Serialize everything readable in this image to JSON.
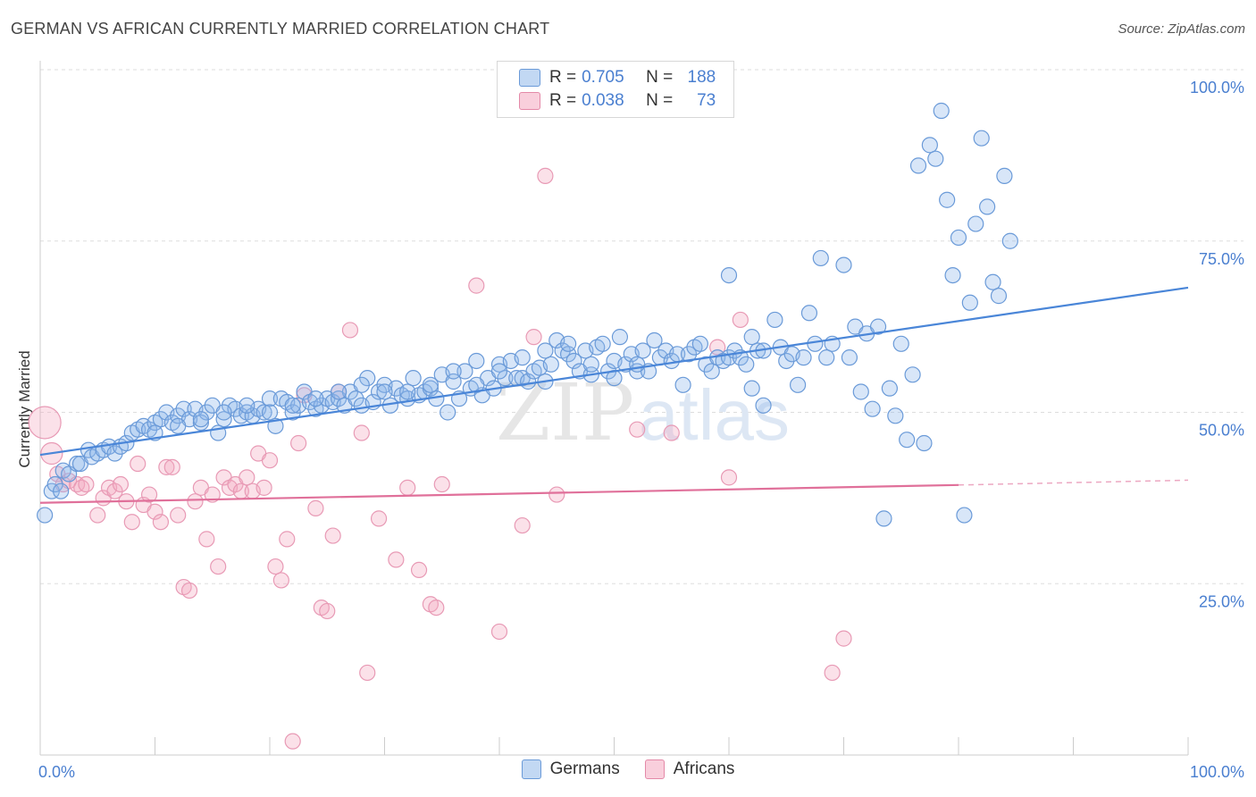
{
  "title": "GERMAN VS AFRICAN CURRENTLY MARRIED CORRELATION CHART",
  "source": "Source: ZipAtlas.com",
  "watermark": {
    "zip": "ZIP",
    "atlas": "atlas"
  },
  "legend": {
    "rows": [
      {
        "r_label": "R =",
        "r_value": "0.705",
        "n_label": "N =",
        "n_value": "188",
        "color": "#8fb8ea"
      },
      {
        "r_label": "R =",
        "r_value": "0.038",
        "n_label": "N =",
        "n_value": "73",
        "color": "#f4a8c0"
      }
    ]
  },
  "bottom_legend": [
    {
      "label": "Germans",
      "color": "#8fb8ea"
    },
    {
      "label": "Africans",
      "color": "#f4a8c0"
    }
  ],
  "colors": {
    "blue": "#4a86d8",
    "blue_fill": "rgba(143,184,234,0.35)",
    "pink": "#e0709a",
    "pink_fill": "rgba(244,168,192,0.35)",
    "axis_text": "#4a7fd0"
  },
  "chart_data": {
    "type": "scatter",
    "title": "GERMAN VS AFRICAN CURRENTLY MARRIED CORRELATION CHART",
    "ylabel": "Currently Married",
    "xlabel": "",
    "xlim": [
      0,
      100
    ],
    "ylim": [
      0,
      100
    ],
    "x_tick_labels": [
      "0.0%",
      "100.0%"
    ],
    "y_tick_labels": [
      {
        "value": 100,
        "label": "100.0%"
      },
      {
        "value": 75,
        "label": "75.0%"
      },
      {
        "value": 50,
        "label": "50.0%"
      },
      {
        "value": 25,
        "label": "25.0%"
      }
    ],
    "grid": true,
    "series": [
      {
        "name": "Germans",
        "trend": {
          "x1": 0,
          "y1": 43.8,
          "x2": 100,
          "y2": 68.2
        },
        "points": [
          [
            0.4,
            35
          ],
          [
            1,
            38.5
          ],
          [
            1.3,
            39.5
          ],
          [
            1.8,
            38.5
          ],
          [
            2,
            41.5
          ],
          [
            2.5,
            41
          ],
          [
            3.2,
            42.5
          ],
          [
            3.5,
            42.5
          ],
          [
            4.2,
            44.5
          ],
          [
            4.5,
            43.5
          ],
          [
            5,
            44
          ],
          [
            5.5,
            44.5
          ],
          [
            6,
            45
          ],
          [
            6.5,
            44
          ],
          [
            7,
            45
          ],
          [
            7.5,
            45.5
          ],
          [
            8,
            47
          ],
          [
            8.5,
            47.5
          ],
          [
            9,
            48
          ],
          [
            9.5,
            47.5
          ],
          [
            10,
            48.5
          ],
          [
            10.5,
            49
          ],
          [
            11,
            50
          ],
          [
            11.5,
            48.5
          ],
          [
            12,
            49.5
          ],
          [
            12.5,
            50.5
          ],
          [
            13,
            49
          ],
          [
            13.5,
            50.5
          ],
          [
            14,
            48.5
          ],
          [
            14.5,
            50
          ],
          [
            15,
            51
          ],
          [
            15.5,
            47
          ],
          [
            16,
            49
          ],
          [
            16.5,
            51
          ],
          [
            17,
            50.5
          ],
          [
            17.5,
            49.5
          ],
          [
            18,
            50
          ],
          [
            18.5,
            49.5
          ],
          [
            19,
            50.5
          ],
          [
            19.5,
            50
          ],
          [
            20,
            52
          ],
          [
            20.5,
            48
          ],
          [
            21,
            52
          ],
          [
            21.5,
            51.5
          ],
          [
            22,
            50
          ],
          [
            22.5,
            51
          ],
          [
            23,
            53
          ],
          [
            23.5,
            51.5
          ],
          [
            24,
            50.5
          ],
          [
            24.5,
            51
          ],
          [
            25,
            52
          ],
          [
            25.5,
            51.5
          ],
          [
            26,
            52
          ],
          [
            26.5,
            51
          ],
          [
            27,
            53
          ],
          [
            27.5,
            52
          ],
          [
            28,
            51
          ],
          [
            28.5,
            55
          ],
          [
            29,
            51.5
          ],
          [
            29.5,
            53
          ],
          [
            30,
            54
          ],
          [
            30.5,
            51
          ],
          [
            31,
            53.5
          ],
          [
            31.5,
            52.5
          ],
          [
            32,
            52
          ],
          [
            32.5,
            55
          ],
          [
            33,
            52.5
          ],
          [
            33.5,
            53
          ],
          [
            34,
            53.5
          ],
          [
            34.5,
            52
          ],
          [
            35,
            55.5
          ],
          [
            35.5,
            50
          ],
          [
            36,
            54.5
          ],
          [
            36.5,
            52
          ],
          [
            37,
            56
          ],
          [
            37.5,
            53.5
          ],
          [
            38,
            57.5
          ],
          [
            38.5,
            52.5
          ],
          [
            39,
            55
          ],
          [
            39.5,
            53.5
          ],
          [
            40,
            57
          ],
          [
            40.5,
            55
          ],
          [
            41,
            57.5
          ],
          [
            41.5,
            55
          ],
          [
            42,
            55
          ],
          [
            42.5,
            54.5
          ],
          [
            43,
            56
          ],
          [
            43.5,
            56.5
          ],
          [
            44,
            54.5
          ],
          [
            44.5,
            57
          ],
          [
            45,
            60.5
          ],
          [
            45.5,
            59
          ],
          [
            46,
            58.5
          ],
          [
            46.5,
            57.5
          ],
          [
            47,
            56
          ],
          [
            47.5,
            59
          ],
          [
            48,
            55.5
          ],
          [
            48.5,
            59.5
          ],
          [
            49,
            60
          ],
          [
            49.5,
            56
          ],
          [
            50,
            57.5
          ],
          [
            50.5,
            61
          ],
          [
            51,
            57
          ],
          [
            51.5,
            58.5
          ],
          [
            52,
            56
          ],
          [
            52.5,
            59
          ],
          [
            53,
            56
          ],
          [
            53.5,
            60.5
          ],
          [
            54,
            58
          ],
          [
            54.5,
            59
          ],
          [
            55,
            57.5
          ],
          [
            55.5,
            58.5
          ],
          [
            56,
            54
          ],
          [
            56.5,
            58.5
          ],
          [
            57,
            59.5
          ],
          [
            57.5,
            60
          ],
          [
            58,
            57
          ],
          [
            58.5,
            56
          ],
          [
            59,
            58
          ],
          [
            59.5,
            57.5
          ],
          [
            60,
            58
          ],
          [
            60.5,
            59
          ],
          [
            61,
            58
          ],
          [
            61.5,
            57
          ],
          [
            62,
            53.5
          ],
          [
            62.5,
            59
          ],
          [
            63,
            51
          ],
          [
            64,
            63.5
          ],
          [
            64.5,
            59.5
          ],
          [
            65,
            57.5
          ],
          [
            65.5,
            58.5
          ],
          [
            66,
            54
          ],
          [
            66.5,
            58
          ],
          [
            67,
            64.5
          ],
          [
            67.5,
            60
          ],
          [
            68,
            72.5
          ],
          [
            68.5,
            58
          ],
          [
            69,
            60
          ],
          [
            70,
            71.5
          ],
          [
            70.5,
            58
          ],
          [
            71,
            62.5
          ],
          [
            71.5,
            53
          ],
          [
            72,
            61.5
          ],
          [
            72.5,
            50.5
          ],
          [
            73,
            62.5
          ],
          [
            73.5,
            34.5
          ],
          [
            74,
            53.5
          ],
          [
            74.5,
            49.5
          ],
          [
            75,
            60
          ],
          [
            75.5,
            46
          ],
          [
            76,
            55.5
          ],
          [
            76.5,
            86
          ],
          [
            77,
            45.5
          ],
          [
            77.5,
            89
          ],
          [
            78,
            87
          ],
          [
            78.5,
            94
          ],
          [
            79,
            81
          ],
          [
            79.5,
            70
          ],
          [
            80,
            75.5
          ],
          [
            80.5,
            35
          ],
          [
            81,
            66
          ],
          [
            81.5,
            77.5
          ],
          [
            82,
            90
          ],
          [
            82.5,
            80
          ],
          [
            83,
            69
          ],
          [
            83.5,
            67
          ],
          [
            84,
            84.5
          ],
          [
            84.5,
            75
          ],
          [
            60,
            70
          ],
          [
            62,
            61
          ],
          [
            63,
            59
          ],
          [
            52,
            57
          ],
          [
            50,
            55
          ],
          [
            48,
            57
          ],
          [
            46,
            60
          ],
          [
            44,
            59
          ],
          [
            42,
            58
          ],
          [
            40,
            56
          ],
          [
            38,
            54
          ],
          [
            36,
            56
          ],
          [
            34,
            54
          ],
          [
            32,
            53
          ],
          [
            30,
            53
          ],
          [
            28,
            54
          ],
          [
            26,
            53
          ],
          [
            24,
            52
          ],
          [
            22,
            51
          ],
          [
            20,
            50
          ],
          [
            18,
            51
          ],
          [
            16,
            50
          ],
          [
            14,
            49
          ],
          [
            12,
            48
          ],
          [
            10,
            47
          ]
        ]
      },
      {
        "name": "Africans",
        "trend": {
          "x1": 0,
          "y1": 36.8,
          "x2": 80,
          "y2": 39.4,
          "dash_to_x": 100,
          "dash_to_y": 40.1
        },
        "points": [
          [
            0.4,
            48.5
          ],
          [
            1,
            44
          ],
          [
            1.5,
            41
          ],
          [
            2,
            39.5
          ],
          [
            2.5,
            40
          ],
          [
            3.2,
            39.5
          ],
          [
            3.6,
            39
          ],
          [
            4,
            39.5
          ],
          [
            5,
            35
          ],
          [
            5.5,
            37.5
          ],
          [
            6,
            39
          ],
          [
            6.5,
            38.5
          ],
          [
            7,
            39.5
          ],
          [
            7.5,
            37
          ],
          [
            8,
            34
          ],
          [
            8.5,
            42.5
          ],
          [
            9,
            36.5
          ],
          [
            9.5,
            38
          ],
          [
            10,
            35.5
          ],
          [
            10.5,
            34
          ],
          [
            11,
            42
          ],
          [
            11.5,
            42
          ],
          [
            12,
            35
          ],
          [
            12.5,
            24.5
          ],
          [
            13,
            24
          ],
          [
            13.5,
            37
          ],
          [
            14,
            39
          ],
          [
            14.5,
            31.5
          ],
          [
            15,
            38
          ],
          [
            15.5,
            27.5
          ],
          [
            16,
            40.5
          ],
          [
            16.5,
            39
          ],
          [
            17,
            39.5
          ],
          [
            17.5,
            38.5
          ],
          [
            18,
            40.5
          ],
          [
            18.5,
            38.5
          ],
          [
            19,
            44
          ],
          [
            19.5,
            39
          ],
          [
            20,
            43
          ],
          [
            20.5,
            27.5
          ],
          [
            21,
            25.5
          ],
          [
            21.5,
            31.5
          ],
          [
            22,
            2
          ],
          [
            22.5,
            45.5
          ],
          [
            23,
            52.5
          ],
          [
            24,
            36
          ],
          [
            24.5,
            21.5
          ],
          [
            25,
            21
          ],
          [
            25.5,
            32
          ],
          [
            26,
            53
          ],
          [
            27,
            62
          ],
          [
            28,
            47
          ],
          [
            28.5,
            12
          ],
          [
            29.5,
            34.5
          ],
          [
            31,
            28.5
          ],
          [
            32,
            39
          ],
          [
            33,
            27
          ],
          [
            34,
            22
          ],
          [
            34.5,
            21.5
          ],
          [
            35,
            39.5
          ],
          [
            38,
            68.5
          ],
          [
            40,
            18
          ],
          [
            42,
            33.5
          ],
          [
            43,
            61
          ],
          [
            44,
            84.5
          ],
          [
            52,
            47.5
          ],
          [
            59,
            59.5
          ],
          [
            60,
            40.5
          ],
          [
            61,
            63.5
          ],
          [
            69,
            12
          ],
          [
            70,
            17
          ],
          [
            55,
            47
          ],
          [
            45,
            38
          ]
        ]
      }
    ]
  }
}
